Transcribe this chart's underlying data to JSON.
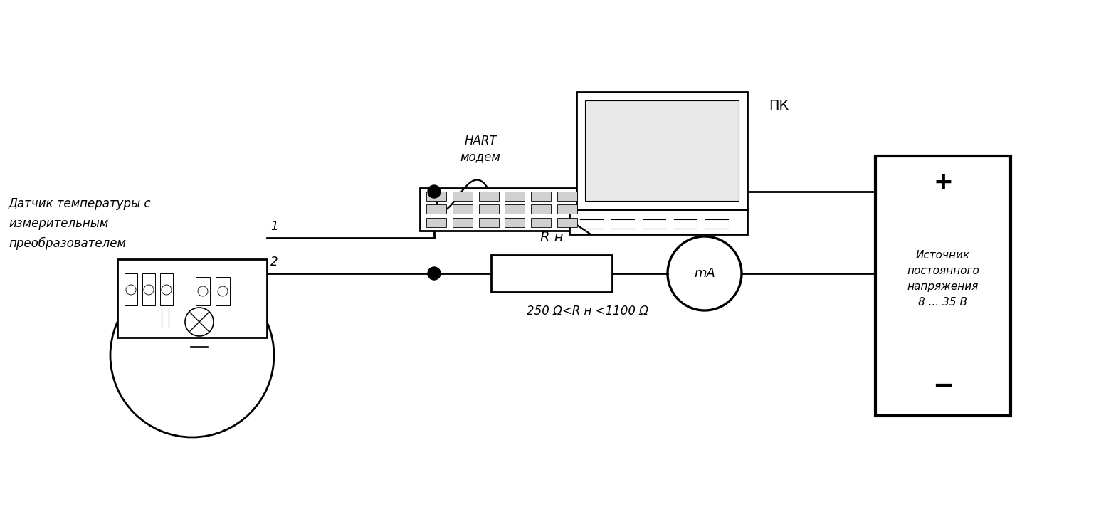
{
  "bg_color": "#ffffff",
  "line_color": "#000000",
  "lw": 2.0,
  "sensor_label": "Датчик температуры с\nизмерительным\nпреобразователем",
  "hart_label": "HART\nмодем",
  "pc_label": "ПК",
  "source_label": "Источник\nпостоянного\nнапряжения\n8 ... 35 В",
  "rn_label": "R н",
  "rn_range_label": "250 Ω<R н <1100 Ω",
  "ma_label": "mA",
  "t1_label": "1",
  "t2_label": "2",
  "plus_label": "+",
  "minus_label": "−"
}
